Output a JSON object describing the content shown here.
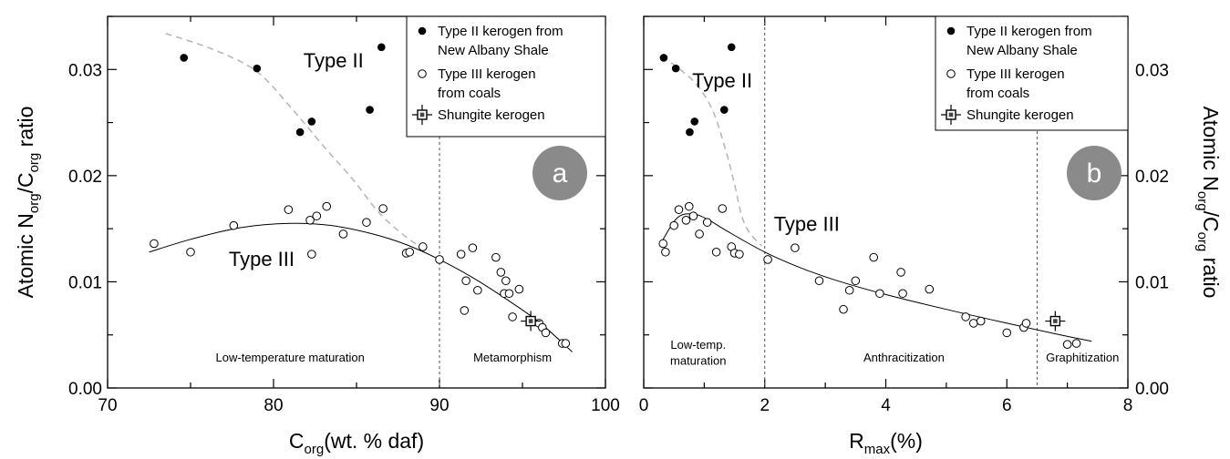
{
  "chart_data": [
    {
      "panel": "a",
      "type": "scatter",
      "xlabel": {
        "main": "C",
        "sub": "org",
        "rest": "(wt. % daf)"
      },
      "ylabel": {
        "parts": [
          [
            "Atomic N",
            ""
          ],
          [
            "org",
            "sub"
          ],
          [
            "/C",
            ""
          ],
          [
            "org",
            "sub"
          ],
          [
            "  ratio",
            ""
          ]
        ]
      },
      "xlim": [
        70,
        100
      ],
      "ylim": [
        0,
        0.035
      ],
      "xticks": [
        70,
        80,
        90,
        100
      ],
      "xtick_labels": [
        "70",
        "80",
        "90",
        "100"
      ],
      "yticks": [
        0,
        0.01,
        0.02,
        0.03
      ],
      "ytick_labels": [
        "0.00",
        "0.01",
        "0.02",
        "0.03"
      ],
      "legend_position": "top-right",
      "legend": [
        "Type II kerogen from",
        "New Albany Shale",
        "Type III kerogen",
        "from coals",
        "Shungite kerogen"
      ],
      "badge": "a",
      "vline": 90,
      "regions": [
        {
          "text": "Low-temperature maturation",
          "x": 81,
          "y": 0.0025
        },
        {
          "text": "Metamorphism",
          "x": 94.4,
          "y": 0.0025
        }
      ],
      "type_labels": [
        {
          "text": "Type II",
          "x": 81.8,
          "y": 0.0302
        },
        {
          "text": "Type III",
          "x": 77.3,
          "y": 0.0115
        }
      ],
      "series": [
        {
          "name": "Type II kerogen from New Albany Shale",
          "marker": "filled",
          "points": [
            [
              74.6,
              0.0311
            ],
            [
              79.0,
              0.0301
            ],
            [
              81.6,
              0.0241
            ],
            [
              82.3,
              0.0251
            ],
            [
              85.8,
              0.0262
            ],
            [
              86.5,
              0.0321
            ]
          ]
        },
        {
          "name": "Type III kerogen from coals",
          "marker": "open",
          "points": [
            [
              72.8,
              0.0136
            ],
            [
              75.0,
              0.0128
            ],
            [
              77.6,
              0.0153
            ],
            [
              80.9,
              0.0168
            ],
            [
              82.2,
              0.0158
            ],
            [
              82.6,
              0.0162
            ],
            [
              83.2,
              0.0171
            ],
            [
              82.3,
              0.0126
            ],
            [
              84.2,
              0.0145
            ],
            [
              85.6,
              0.0156
            ],
            [
              86.6,
              0.0169
            ],
            [
              88.0,
              0.0127
            ],
            [
              88.2,
              0.0128
            ],
            [
              89.0,
              0.0133
            ],
            [
              90.0,
              0.0121
            ],
            [
              91.3,
              0.0126
            ],
            [
              92.0,
              0.0132
            ],
            [
              91.6,
              0.0101
            ],
            [
              92.3,
              0.0092
            ],
            [
              91.5,
              0.0073
            ],
            [
              93.4,
              0.0123
            ],
            [
              93.7,
              0.0109
            ],
            [
              94.0,
              0.0101
            ],
            [
              93.9,
              0.0089
            ],
            [
              94.2,
              0.0089
            ],
            [
              94.8,
              0.0093
            ],
            [
              94.4,
              0.0067
            ],
            [
              95.6,
              0.0063
            ],
            [
              96.0,
              0.0061
            ],
            [
              96.2,
              0.0057
            ],
            [
              96.4,
              0.0052
            ],
            [
              97.4,
              0.0042
            ],
            [
              97.6,
              0.0042
            ]
          ]
        },
        {
          "name": "Shungite kerogen",
          "marker": "square-cross",
          "points": [
            [
              95.5,
              0.0063
            ]
          ]
        }
      ],
      "type_ii_trend": [
        [
          73.5,
          0.0334
        ],
        [
          76.5,
          0.0318
        ],
        [
          79.0,
          0.0298
        ],
        [
          81.0,
          0.0265
        ],
        [
          83.0,
          0.0228
        ],
        [
          84.8,
          0.0196
        ],
        [
          86.3,
          0.0166
        ],
        [
          87.6,
          0.0147
        ],
        [
          88.8,
          0.0133
        ]
      ],
      "type_iii_trend": [
        [
          72.5,
          0.0128
        ],
        [
          75.0,
          0.014
        ],
        [
          78.0,
          0.0151
        ],
        [
          81.0,
          0.0155
        ],
        [
          83.5,
          0.0153
        ],
        [
          86.0,
          0.0145
        ],
        [
          88.0,
          0.0135
        ],
        [
          90.0,
          0.0121
        ],
        [
          92.0,
          0.0104
        ],
        [
          94.0,
          0.0084
        ],
        [
          96.0,
          0.0062
        ],
        [
          98.0,
          0.0034
        ]
      ]
    },
    {
      "panel": "b",
      "type": "scatter",
      "xlabel": {
        "main": "R",
        "sub": "max",
        "rest": "(%)"
      },
      "ylabel": {
        "parts": [
          [
            "Atomic N",
            ""
          ],
          [
            "org",
            "sub"
          ],
          [
            "/C",
            ""
          ],
          [
            "org",
            "sub"
          ],
          [
            "  ratio",
            ""
          ]
        ]
      },
      "xlim": [
        0,
        8
      ],
      "ylim": [
        0,
        0.035
      ],
      "xticks": [
        0,
        2,
        4,
        6,
        8
      ],
      "xtick_labels": [
        "0",
        "2",
        "4",
        "6",
        "8"
      ],
      "yticks": [
        0,
        0.01,
        0.02,
        0.03
      ],
      "ytick_labels": [
        "0.00",
        "0.01",
        "0.02",
        "0.03"
      ],
      "legend_position": "top-right",
      "legend": [
        "Type II kerogen from",
        "New Albany Shale",
        "Type III kerogen",
        "from coals",
        "Shungite kerogen"
      ],
      "badge": "b",
      "vlines": [
        2,
        6.5
      ],
      "regions": [
        {
          "text": "Low-temp.",
          "x": 0.9,
          "y": 0.0037
        },
        {
          "text": "maturation",
          "x": 0.9,
          "y": 0.0022
        },
        {
          "text": "Anthracitization",
          "x": 4.3,
          "y": 0.0025
        },
        {
          "text": "Graphitization",
          "x": 7.25,
          "y": 0.0025
        }
      ],
      "type_labels": [
        {
          "text": "Type II",
          "x": 0.8,
          "y": 0.0283
        },
        {
          "text": "Type III",
          "x": 2.15,
          "y": 0.0148
        }
      ],
      "series": [
        {
          "name": "Type II kerogen from New Albany Shale",
          "marker": "filled",
          "points": [
            [
              0.33,
              0.0311
            ],
            [
              0.53,
              0.0301
            ],
            [
              0.76,
              0.0241
            ],
            [
              0.84,
              0.0251
            ],
            [
              1.33,
              0.0262
            ],
            [
              1.45,
              0.0321
            ]
          ]
        },
        {
          "name": "Type III kerogen from coals",
          "marker": "open",
          "points": [
            [
              0.32,
              0.0136
            ],
            [
              0.36,
              0.0128
            ],
            [
              0.5,
              0.0153
            ],
            [
              0.58,
              0.0168
            ],
            [
              0.7,
              0.0158
            ],
            [
              0.75,
              0.0171
            ],
            [
              0.82,
              0.0162
            ],
            [
              0.92,
              0.0145
            ],
            [
              1.05,
              0.0156
            ],
            [
              1.2,
              0.0128
            ],
            [
              1.3,
              0.0169
            ],
            [
              1.45,
              0.0133
            ],
            [
              1.5,
              0.0127
            ],
            [
              1.58,
              0.0126
            ],
            [
              2.05,
              0.0121
            ],
            [
              2.5,
              0.0132
            ],
            [
              2.9,
              0.0101
            ],
            [
              3.3,
              0.0074
            ],
            [
              3.4,
              0.0092
            ],
            [
              3.5,
              0.0101
            ],
            [
              3.8,
              0.0123
            ],
            [
              3.9,
              0.0089
            ],
            [
              4.25,
              0.0109
            ],
            [
              4.28,
              0.0089
            ],
            [
              4.72,
              0.0093
            ],
            [
              5.32,
              0.0067
            ],
            [
              5.45,
              0.0061
            ],
            [
              5.57,
              0.0063
            ],
            [
              6.0,
              0.0052
            ],
            [
              6.28,
              0.0057
            ],
            [
              6.32,
              0.0061
            ],
            [
              7.0,
              0.0041
            ],
            [
              7.15,
              0.0042
            ]
          ]
        },
        {
          "name": "Shungite kerogen",
          "marker": "square-cross",
          "points": [
            [
              6.8,
              0.0063
            ]
          ]
        }
      ],
      "type_ii_trend": [
        [
          0.3,
          0.0312
        ],
        [
          0.6,
          0.03
        ],
        [
          0.9,
          0.0284
        ],
        [
          1.15,
          0.026
        ],
        [
          1.35,
          0.0225
        ],
        [
          1.5,
          0.0192
        ],
        [
          1.62,
          0.0162
        ],
        [
          1.75,
          0.0146
        ],
        [
          1.95,
          0.0134
        ]
      ],
      "type_iii_trend": [
        [
          0.3,
          0.0138
        ],
        [
          0.55,
          0.016
        ],
        [
          0.8,
          0.0164
        ],
        [
          1.05,
          0.0159
        ],
        [
          1.4,
          0.0147
        ],
        [
          2.0,
          0.0128
        ],
        [
          2.6,
          0.0113
        ],
        [
          3.2,
          0.0101
        ],
        [
          4.0,
          0.0088
        ],
        [
          5.0,
          0.0074
        ],
        [
          6.0,
          0.0061
        ],
        [
          6.8,
          0.0051
        ],
        [
          7.4,
          0.0044
        ]
      ]
    }
  ]
}
